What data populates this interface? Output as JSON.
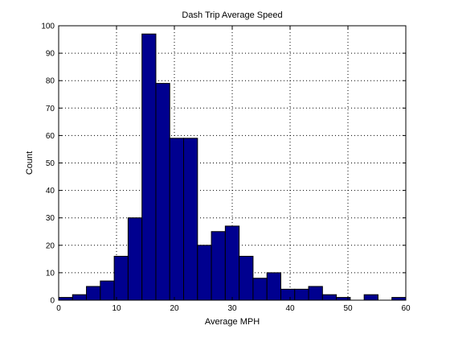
{
  "chart_data": {
    "type": "bar",
    "title": "Dash Trip Average Speed",
    "xlabel": "Average MPH",
    "ylabel": "Count",
    "xlim": [
      0,
      60
    ],
    "ylim": [
      0,
      100
    ],
    "xticks": [
      0,
      10,
      20,
      30,
      40,
      50,
      60
    ],
    "yticks": [
      0,
      10,
      20,
      30,
      40,
      50,
      60,
      70,
      80,
      90,
      100
    ],
    "grid": true,
    "bar_color": "#00008f",
    "bin_edges": [
      0,
      2.4,
      4.8,
      7.2,
      9.6,
      12,
      14.4,
      16.8,
      19.2,
      21.6,
      24,
      26.4,
      28.8,
      31.2,
      33.6,
      36,
      38.4,
      40.8,
      43.2,
      45.6,
      48,
      50.4,
      52.8,
      55.2,
      57.6
    ],
    "values": [
      1,
      2,
      5,
      7,
      16,
      30,
      97,
      79,
      59,
      59,
      20,
      25,
      27,
      16,
      8,
      10,
      4,
      4,
      5,
      2,
      1,
      0,
      2,
      0,
      1
    ]
  }
}
